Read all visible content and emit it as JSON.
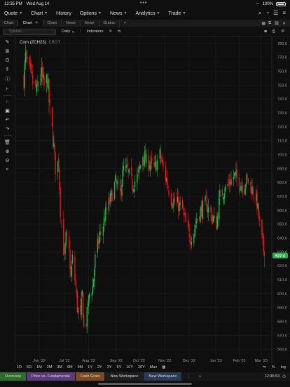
{
  "status": {
    "time": "12:35 PM",
    "date": "Wed Aug 14",
    "battery": "100%"
  },
  "menu": [
    {
      "label": "Quote",
      "caret": true
    },
    {
      "label": "Chart",
      "caret": true
    },
    {
      "label": "History",
      "caret": false
    },
    {
      "label": "Options",
      "caret": true
    },
    {
      "label": "News",
      "caret": true
    },
    {
      "label": "Analytics",
      "caret": true
    },
    {
      "label": "Trade",
      "caret": true
    }
  ],
  "menu_icons": [
    "search-icon",
    "bell-icon",
    "list-icon",
    "hamburger-icon"
  ],
  "tabs": [
    {
      "label": "Chart",
      "active": false
    },
    {
      "label": "Chart",
      "active": true
    },
    {
      "label": "Chart",
      "active": false
    },
    {
      "label": "News",
      "active": false
    },
    {
      "label": "News",
      "active": false
    },
    {
      "label": "Grains",
      "active": false
    }
  ],
  "toolbar": {
    "symbol_placeholder": "Symbol...",
    "interval": "Daily",
    "indicators": "Indicators"
  },
  "timeframes": [
    "1D",
    "5D",
    "1M",
    "2M",
    "3M",
    "6M",
    "9M",
    "1Y",
    "2Y",
    "3Y",
    "5Y",
    "10Y",
    "20Y",
    "Max"
  ],
  "time_bar_right": [
    "%",
    "log"
  ],
  "workspaces": [
    {
      "label": "Overview",
      "color": "#2f6b2f",
      "active": false
    },
    {
      "label": "Price vs. Fundamental",
      "color": "#5b3a78",
      "active": false
    },
    {
      "label": "Cash Grain",
      "color": "#7a4b1e",
      "active": false
    },
    {
      "label": "New Workspace",
      "color": "#1e1e1e",
      "active": false
    },
    {
      "label": "New Workspace",
      "color": "#2a3a55",
      "active": true
    }
  ],
  "clock": "12:35:53",
  "chart_data": {
    "type": "candlestick",
    "title": "Corn (ZCH23)",
    "exchange": "CBOT",
    "last_price": "627.4",
    "ylim": [
      550,
      785
    ],
    "y_ticks": [
      560,
      570,
      580,
      590,
      600,
      610,
      620,
      630,
      640,
      650,
      660,
      670,
      680,
      690,
      700,
      710,
      720,
      730,
      740,
      750,
      760,
      770,
      780
    ],
    "x_ticks": [
      "Jun '22",
      "Jul '22",
      "Aug '22",
      "Sep '22",
      "Oct '22",
      "Nov '22",
      "Dec '22",
      "Jan '23",
      "Feb '23",
      "Mar '23"
    ],
    "grid": true,
    "up_color": "#22b14c",
    "down_color": "#e01919",
    "path": [
      [
        "2022-05-16",
        755
      ],
      [
        "2022-05-18",
        770
      ],
      [
        "2022-05-25",
        755
      ],
      [
        "2022-06-01",
        745
      ],
      [
        "2022-06-06",
        760
      ],
      [
        "2022-06-10",
        748
      ],
      [
        "2022-06-14",
        755
      ],
      [
        "2022-06-17",
        730
      ],
      [
        "2022-06-21",
        712
      ],
      [
        "2022-06-24",
        690
      ],
      [
        "2022-06-28",
        695
      ],
      [
        "2022-06-30",
        660
      ],
      [
        "2022-07-05",
        625
      ],
      [
        "2022-07-07",
        640
      ],
      [
        "2022-07-11",
        630
      ],
      [
        "2022-07-13",
        612
      ],
      [
        "2022-07-15",
        625
      ],
      [
        "2022-07-19",
        605
      ],
      [
        "2022-07-21",
        590
      ],
      [
        "2022-07-25",
        583
      ],
      [
        "2022-07-27",
        600
      ],
      [
        "2022-07-29",
        575
      ],
      [
        "2022-08-01",
        580
      ],
      [
        "2022-08-03",
        590
      ],
      [
        "2022-08-05",
        600
      ],
      [
        "2022-08-09",
        605
      ],
      [
        "2022-08-12",
        625
      ],
      [
        "2022-08-17",
        640
      ],
      [
        "2022-08-22",
        650
      ],
      [
        "2022-08-26",
        660
      ],
      [
        "2022-08-31",
        668
      ],
      [
        "2022-09-06",
        680
      ],
      [
        "2022-09-12",
        672
      ],
      [
        "2022-09-16",
        690
      ],
      [
        "2022-09-21",
        688
      ],
      [
        "2022-09-27",
        678
      ],
      [
        "2022-10-04",
        685
      ],
      [
        "2022-10-10",
        700
      ],
      [
        "2022-10-14",
        695
      ],
      [
        "2022-10-19",
        693
      ],
      [
        "2022-10-25",
        690
      ],
      [
        "2022-10-31",
        700
      ],
      [
        "2022-11-04",
        690
      ],
      [
        "2022-11-09",
        680
      ],
      [
        "2022-11-14",
        668
      ],
      [
        "2022-11-21",
        665
      ],
      [
        "2022-11-28",
        660
      ],
      [
        "2022-12-02",
        650
      ],
      [
        "2022-12-07",
        640
      ],
      [
        "2022-12-12",
        645
      ],
      [
        "2022-12-16",
        655
      ],
      [
        "2022-12-21",
        660
      ],
      [
        "2022-12-27",
        665
      ],
      [
        "2023-01-03",
        655
      ],
      [
        "2023-01-09",
        650
      ],
      [
        "2023-01-13",
        670
      ],
      [
        "2023-01-19",
        675
      ],
      [
        "2023-01-25",
        680
      ],
      [
        "2023-01-31",
        685
      ],
      [
        "2023-02-06",
        680
      ],
      [
        "2023-02-10",
        678
      ],
      [
        "2023-02-16",
        682
      ],
      [
        "2023-02-22",
        675
      ],
      [
        "2023-02-28",
        665
      ],
      [
        "2023-03-03",
        650
      ],
      [
        "2023-03-07",
        635
      ],
      [
        "2023-03-09",
        627.4
      ]
    ]
  }
}
